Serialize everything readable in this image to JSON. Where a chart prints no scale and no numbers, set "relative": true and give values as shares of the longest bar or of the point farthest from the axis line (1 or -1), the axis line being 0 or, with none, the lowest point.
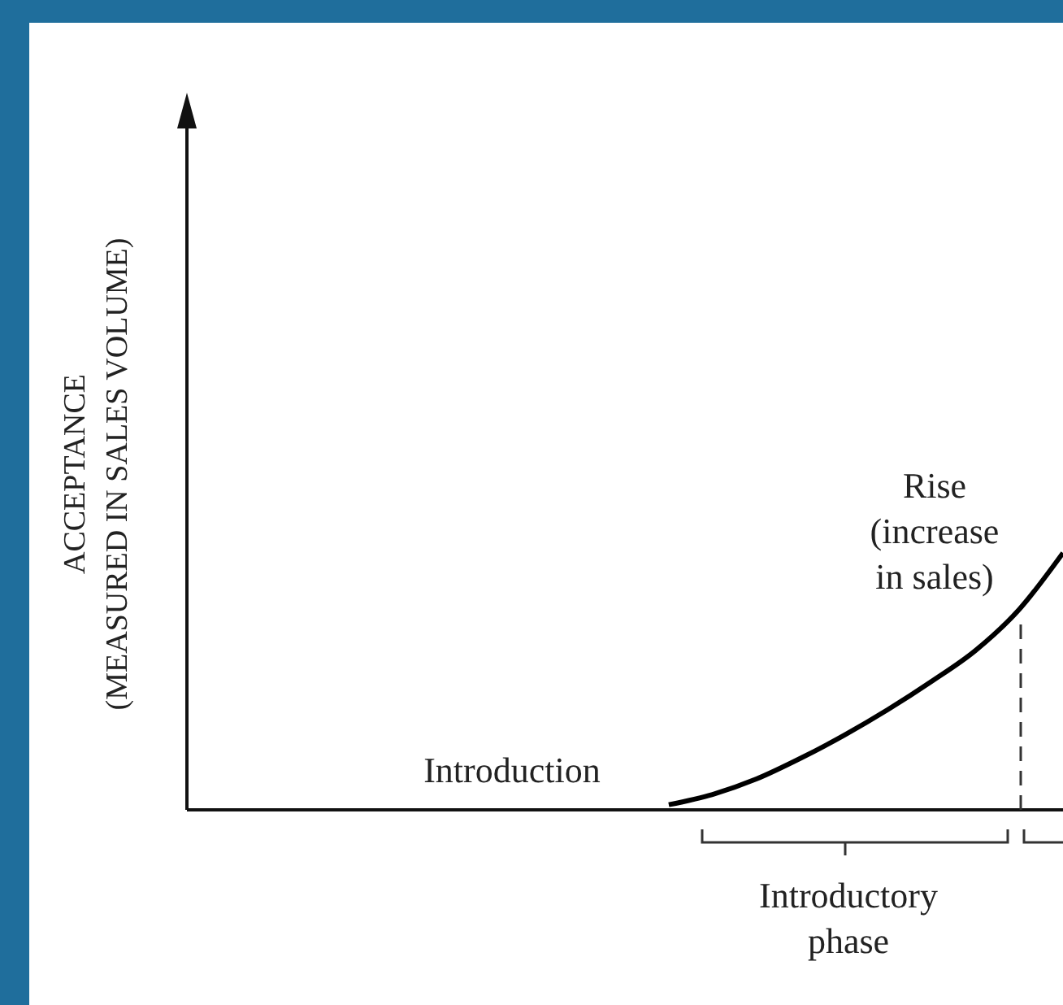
{
  "chart_data": {
    "type": "line",
    "relative": true,
    "ylabel": "ACCEPTANCE\n(MEASURED IN SALES VOLUME)",
    "categories": [
      null,
      null,
      null,
      null,
      null,
      null,
      null,
      null,
      null,
      null,
      null,
      null,
      null,
      null,
      null,
      null,
      null,
      null,
      null,
      null,
      null
    ],
    "series": [
      {
        "color": "#000000",
        "values": [
          null,
          null,
          null,
          null,
          null,
          null,
          null,
          null,
          null,
          null,
          null,
          0.02,
          0.06,
          0.12,
          0.2,
          0.29,
          0.39,
          0.5,
          0.62,
          0.78,
          1
        ]
      }
    ],
    "annotations": [
      "Introduction",
      "Rise\n(increase\nin sales)",
      "Introductory\nphase"
    ],
    "marker": "none",
    "line_style": "solid",
    "grid": false
  }
}
